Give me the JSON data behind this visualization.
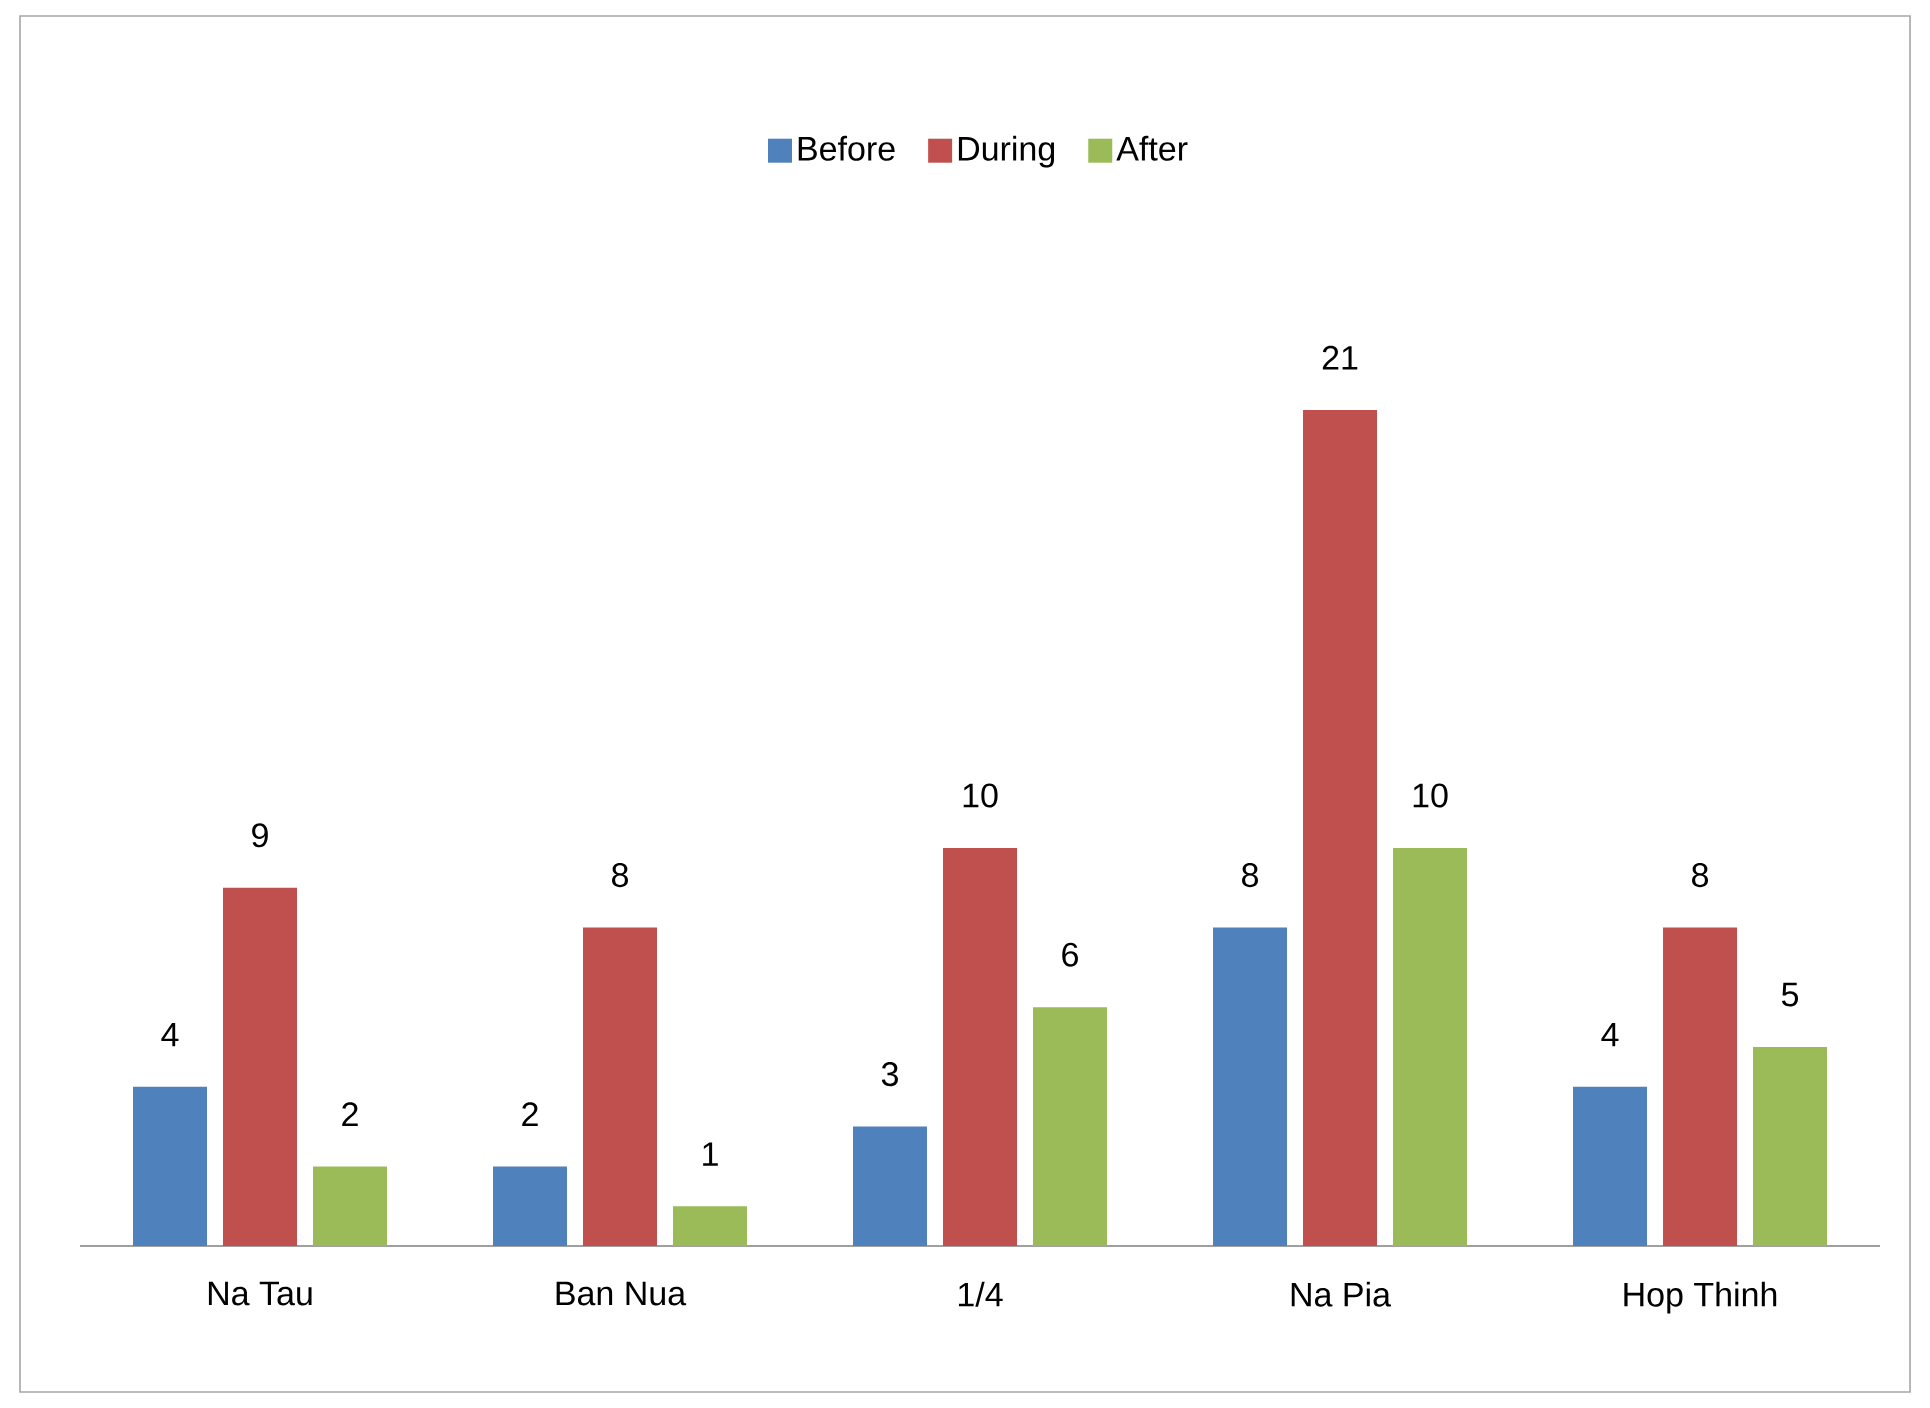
{
  "chart_data": {
    "type": "bar",
    "categories": [
      "Na Tau",
      "Ban Nua",
      "1/4",
      "Na Pia",
      "Hop Thinh"
    ],
    "series": [
      {
        "name": "Before",
        "color": "#4f81bd",
        "values": [
          4,
          2,
          3,
          8,
          4
        ]
      },
      {
        "name": "During",
        "color": "#c0504d",
        "values": [
          9,
          8,
          10,
          21,
          8
        ]
      },
      {
        "name": "After",
        "color": "#9bbb59",
        "values": [
          2,
          1,
          6,
          10,
          5
        ]
      }
    ],
    "data_labels": true,
    "legend": "top"
  }
}
